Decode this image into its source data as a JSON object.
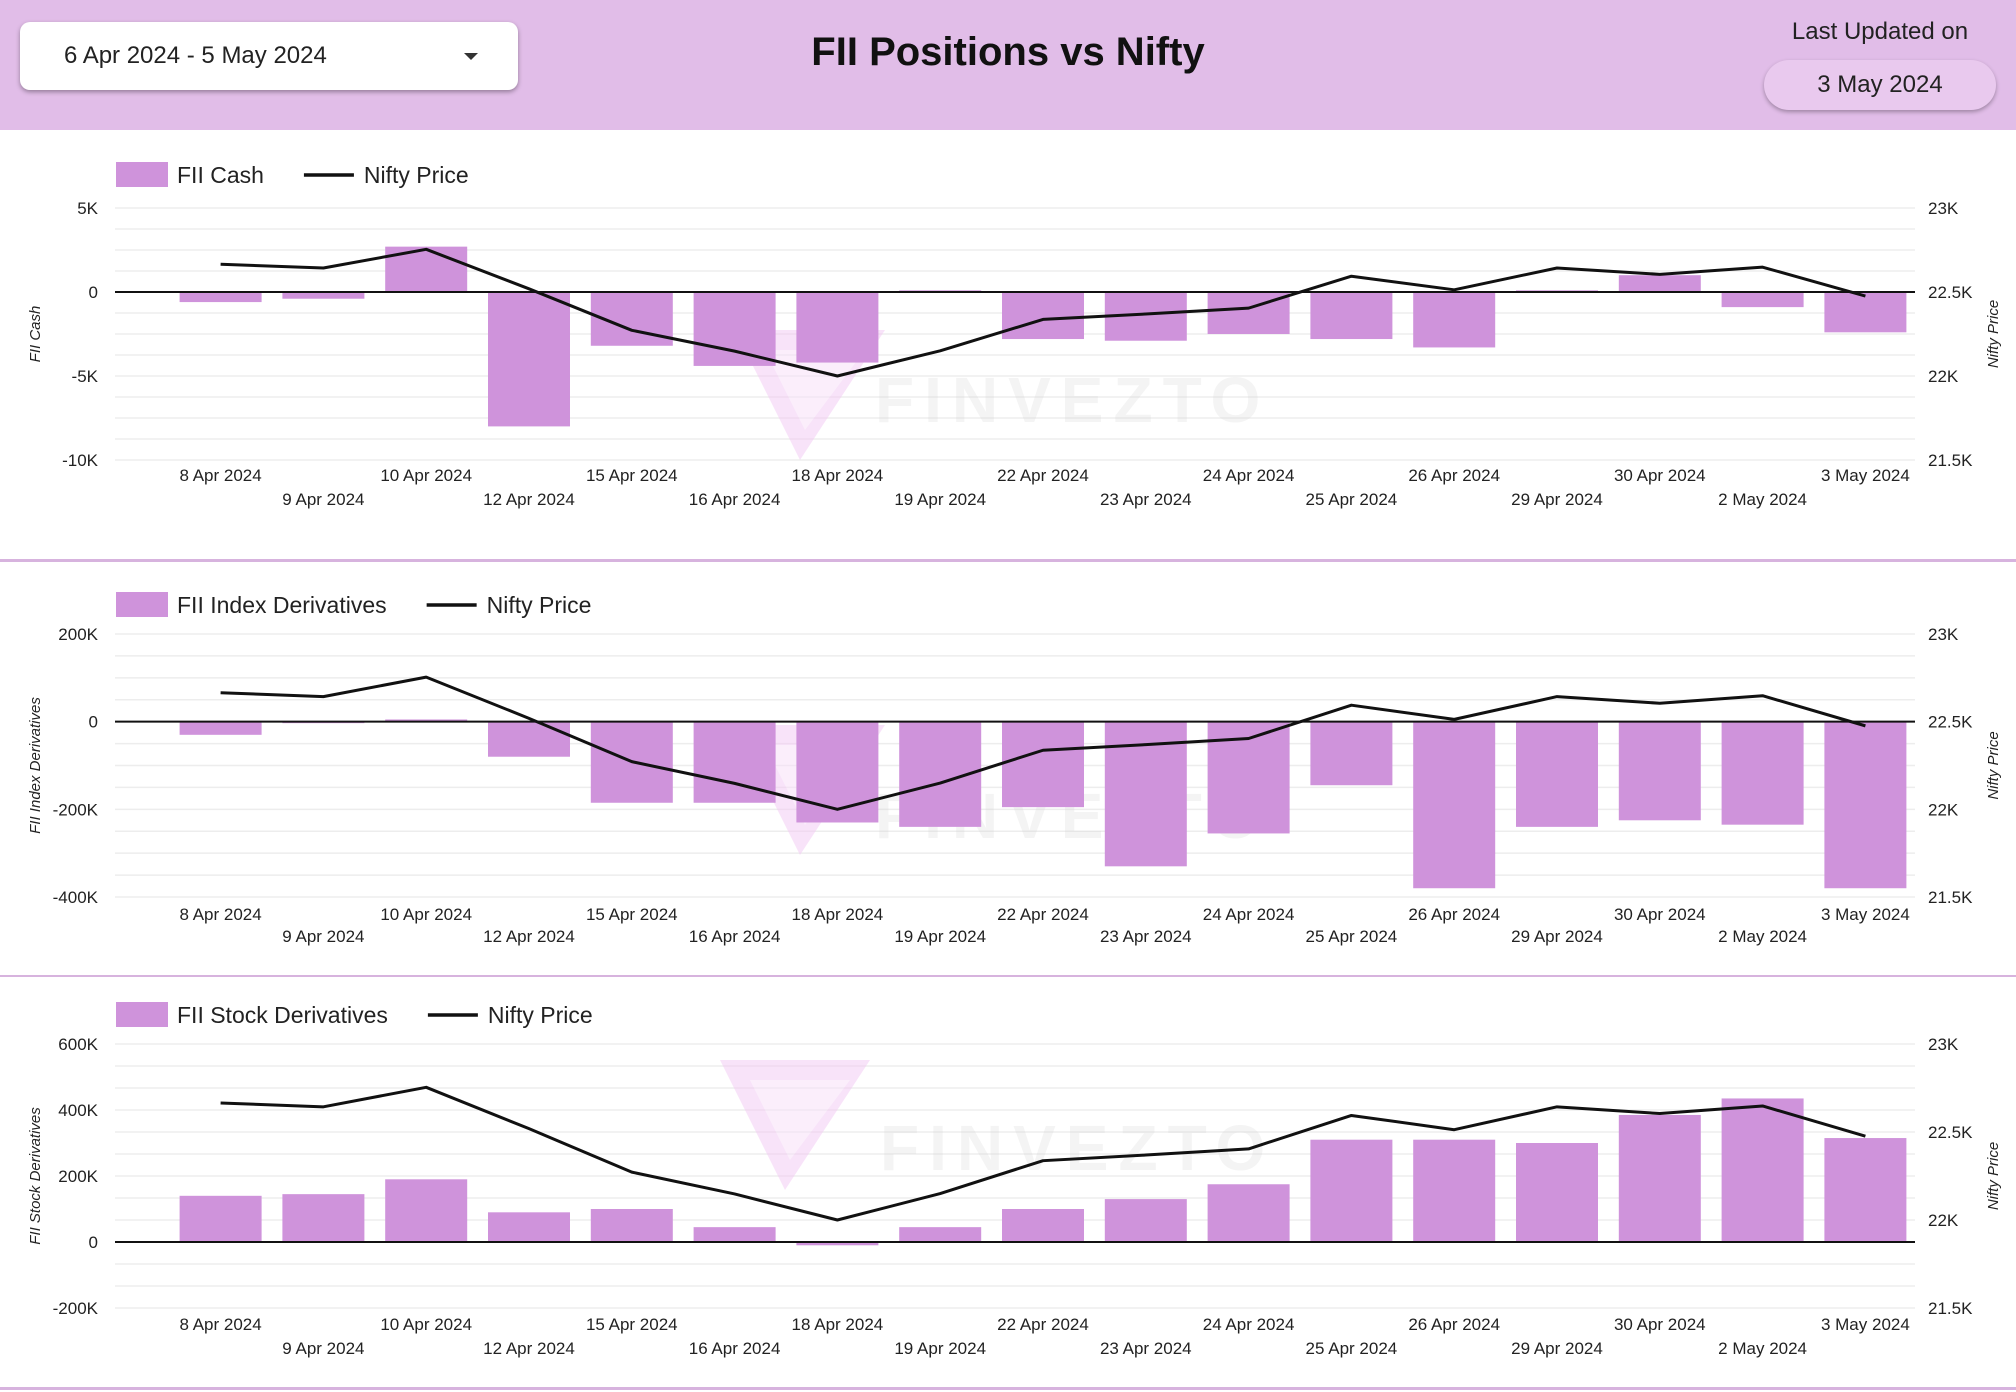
{
  "header": {
    "date_range": "6 Apr 2024 - 5 May 2024",
    "title": "FII Positions vs Nifty",
    "last_updated_label": "Last Updated on",
    "last_updated_value": "3 May 2024"
  },
  "watermark": "FINVEZTO",
  "colors": {
    "bar": "#cf93db",
    "line": "#111111",
    "header_bg": "#e1bde8"
  },
  "icons": {
    "date_dropdown": "chevron-down-icon"
  },
  "chart_data": [
    {
      "type": "bar",
      "id": "fii-cash",
      "categories": [
        "8 Apr 2024",
        "9 Apr 2024",
        "10 Apr 2024",
        "12 Apr 2024",
        "15 Apr 2024",
        "16 Apr 2024",
        "18 Apr 2024",
        "19 Apr 2024",
        "22 Apr 2024",
        "23 Apr 2024",
        "24 Apr 2024",
        "25 Apr 2024",
        "26 Apr 2024",
        "29 Apr 2024",
        "30 Apr 2024",
        "2 May 2024",
        "3 May 2024"
      ],
      "series": [
        {
          "name": "FII Cash",
          "kind": "bar",
          "axis": "left",
          "values": [
            -600,
            -400,
            2700,
            -8000,
            -3200,
            -4400,
            -4200,
            100,
            -2800,
            -2900,
            -2500,
            -2800,
            -3300,
            100,
            1000,
            -900,
            -2400
          ]
        },
        {
          "name": "Nifty Price",
          "kind": "line",
          "axis": "right",
          "values": [
            22665,
            22643,
            22754,
            22519,
            22272,
            22148,
            22000,
            22150,
            22337,
            22369,
            22404,
            22594,
            22513,
            22643,
            22605,
            22648,
            22476
          ]
        }
      ],
      "ylabel": "FII Cash",
      "y2label": "Nifty Price",
      "ylim": [
        -10000,
        5000
      ],
      "y2lim": [
        21500,
        23000
      ],
      "yticks": [
        "5K",
        "0",
        "-5K",
        "-10K"
      ],
      "y2ticks": [
        "23K",
        "22.5K",
        "22K",
        "21.5K"
      ],
      "legend_position": "top-left",
      "grid": true
    },
    {
      "type": "bar",
      "id": "fii-index",
      "categories": [
        "8 Apr 2024",
        "9 Apr 2024",
        "10 Apr 2024",
        "12 Apr 2024",
        "15 Apr 2024",
        "16 Apr 2024",
        "18 Apr 2024",
        "19 Apr 2024",
        "22 Apr 2024",
        "23 Apr 2024",
        "24 Apr 2024",
        "25 Apr 2024",
        "26 Apr 2024",
        "29 Apr 2024",
        "30 Apr 2024",
        "2 May 2024",
        "3 May 2024"
      ],
      "series": [
        {
          "name": "FII Index Derivatives",
          "kind": "bar",
          "axis": "left",
          "values": [
            -30000,
            0,
            5000,
            -80000,
            -185000,
            -185000,
            -230000,
            -240000,
            -195000,
            -330000,
            -255000,
            -145000,
            -380000,
            -240000,
            -225000,
            -235000,
            -380000
          ]
        },
        {
          "name": "Nifty Price",
          "kind": "line",
          "axis": "right",
          "values": [
            22665,
            22643,
            22754,
            22519,
            22272,
            22148,
            22000,
            22150,
            22337,
            22369,
            22404,
            22594,
            22513,
            22643,
            22605,
            22648,
            22476
          ]
        }
      ],
      "ylabel": "FII Index Derivatives",
      "y2label": "Nifty Price",
      "ylim": [
        -400000,
        200000
      ],
      "y2lim": [
        21500,
        23000
      ],
      "yticks": [
        "200K",
        "0",
        "-200K",
        "-400K"
      ],
      "y2ticks": [
        "23K",
        "22.5K",
        "22K",
        "21.5K"
      ],
      "legend_position": "top-left",
      "grid": true
    },
    {
      "type": "bar",
      "id": "fii-stock",
      "categories": [
        "8 Apr 2024",
        "9 Apr 2024",
        "10 Apr 2024",
        "12 Apr 2024",
        "15 Apr 2024",
        "16 Apr 2024",
        "18 Apr 2024",
        "19 Apr 2024",
        "22 Apr 2024",
        "23 Apr 2024",
        "24 Apr 2024",
        "25 Apr 2024",
        "26 Apr 2024",
        "29 Apr 2024",
        "30 Apr 2024",
        "2 May 2024",
        "3 May 2024"
      ],
      "series": [
        {
          "name": "FII Stock Derivatives",
          "kind": "bar",
          "axis": "left",
          "values": [
            140000,
            145000,
            190000,
            90000,
            100000,
            45000,
            -10000,
            45000,
            100000,
            130000,
            175000,
            310000,
            310000,
            300000,
            385000,
            435000,
            315000
          ]
        },
        {
          "name": "Nifty Price",
          "kind": "line",
          "axis": "right",
          "values": [
            22665,
            22643,
            22754,
            22519,
            22272,
            22148,
            22000,
            22150,
            22337,
            22369,
            22404,
            22594,
            22513,
            22643,
            22605,
            22648,
            22476
          ]
        }
      ],
      "ylabel": "FII Stock Derivatives",
      "y2label": "Nifty Price",
      "ylim": [
        -200000,
        600000
      ],
      "y2lim": [
        21500,
        23000
      ],
      "yticks": [
        "600K",
        "400K",
        "200K",
        "0",
        "-200K"
      ],
      "y2ticks": [
        "23K",
        "22.5K",
        "22K",
        "21.5K"
      ],
      "legend_position": "top-left",
      "grid": true
    }
  ]
}
